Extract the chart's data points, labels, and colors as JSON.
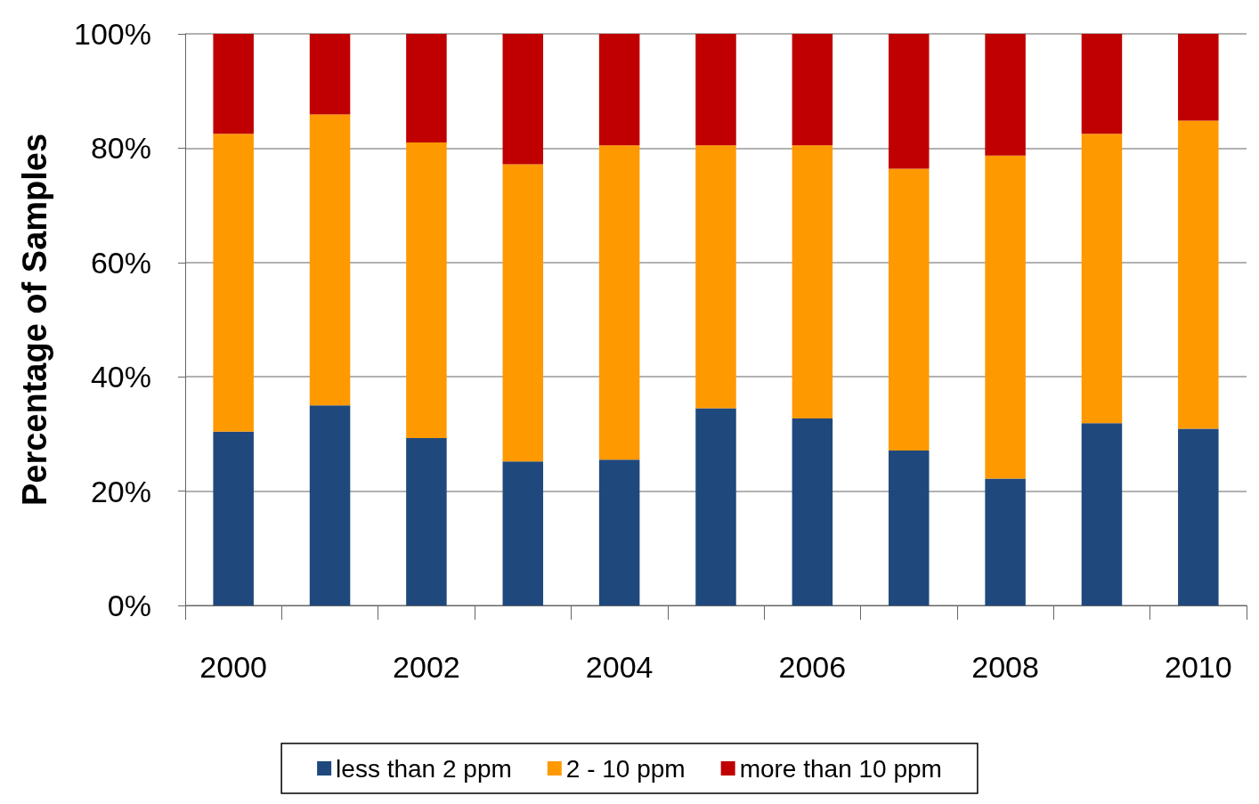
{
  "chart_data": {
    "type": "bar",
    "stacked": true,
    "ylabel": "Percentage of Samples",
    "categories": [
      "2000",
      null,
      "2002",
      null,
      "2004",
      null,
      "2006",
      null,
      "2008",
      null,
      "2010"
    ],
    "series": [
      {
        "name": "less than 2 ppm",
        "color": "#1f497d",
        "values": [
          30.4,
          35.0,
          29.3,
          25.2,
          25.5,
          34.5,
          32.7,
          27.1,
          22.2,
          31.9,
          30.9
        ]
      },
      {
        "name": "2 - 10 ppm",
        "color": "#ff9900",
        "values": [
          52.1,
          50.9,
          51.7,
          52.0,
          55.0,
          46.0,
          47.8,
          49.3,
          56.5,
          50.6,
          53.9
        ]
      },
      {
        "name": "more than 10 ppm",
        "color": "#c00000",
        "values": [
          17.5,
          14.1,
          19.0,
          22.8,
          19.5,
          19.5,
          19.5,
          23.6,
          21.3,
          17.5,
          15.2
        ]
      }
    ],
    "ylim": [
      0,
      100
    ],
    "yticks": [
      {
        "value": 0,
        "label": "0%"
      },
      {
        "value": 20,
        "label": "20%"
      },
      {
        "value": 40,
        "label": "40%"
      },
      {
        "value": 60,
        "label": "60%"
      },
      {
        "value": 80,
        "label": "80%"
      },
      {
        "value": 100,
        "label": "100%"
      }
    ],
    "grid": "y",
    "legend": "bottom"
  }
}
